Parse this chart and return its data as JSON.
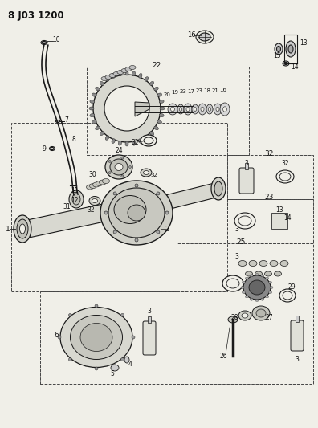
{
  "title": "8 J03 1200",
  "bg_color": "#f0efe8",
  "line_color": "#1a1a1a",
  "text_color": "#111111",
  "fig_width": 3.96,
  "fig_height": 5.33,
  "dpi": 100
}
